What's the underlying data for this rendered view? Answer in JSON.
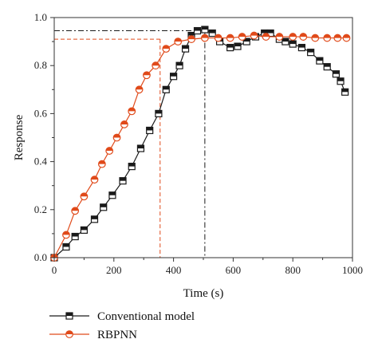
{
  "chart_data": {
    "type": "line",
    "xlabel": "Time (s)",
    "ylabel": "Response",
    "xlim": [
      0,
      1000
    ],
    "ylim": [
      0,
      1.0
    ],
    "x_ticks": [
      0,
      200,
      400,
      600,
      800,
      1000
    ],
    "x_tick_labels": [
      "0",
      "200",
      "400",
      "600",
      "800",
      "1000"
    ],
    "y_ticks": [
      0,
      0.2,
      0.4,
      0.6,
      0.8,
      1.0
    ],
    "y_tick_labels": [
      "0.0",
      "0.2",
      "0.4",
      "0.6",
      "0.8",
      "1.0"
    ],
    "grid": false,
    "legend_position": "bottom-left",
    "series": [
      {
        "name": "Conventional model",
        "color": "#1a1a1a",
        "marker": "square-half-filled",
        "x": [
          0,
          40,
          70,
          100,
          135,
          165,
          195,
          230,
          260,
          290,
          320,
          350,
          375,
          400,
          420,
          440,
          460,
          480,
          505,
          530,
          555,
          590,
          615,
          645,
          675,
          705,
          725,
          755,
          775,
          800,
          830,
          860,
          890,
          915,
          945,
          960,
          975
        ],
        "y": [
          0.0,
          0.045,
          0.088,
          0.115,
          0.16,
          0.21,
          0.26,
          0.32,
          0.38,
          0.455,
          0.53,
          0.6,
          0.7,
          0.755,
          0.8,
          0.87,
          0.925,
          0.945,
          0.95,
          0.935,
          0.9,
          0.875,
          0.88,
          0.9,
          0.92,
          0.935,
          0.935,
          0.91,
          0.9,
          0.89,
          0.875,
          0.855,
          0.82,
          0.795,
          0.765,
          0.735,
          0.69
        ]
      },
      {
        "name": "RBPNN",
        "color": "#e04a1a",
        "marker": "circle-half-filled",
        "x": [
          0,
          40,
          70,
          100,
          135,
          160,
          185,
          210,
          235,
          260,
          285,
          310,
          340,
          375,
          415,
          460,
          505,
          550,
          590,
          630,
          670,
          710,
          755,
          800,
          835,
          875,
          915,
          950,
          980
        ],
        "y": [
          0.0,
          0.095,
          0.195,
          0.255,
          0.325,
          0.39,
          0.445,
          0.5,
          0.555,
          0.61,
          0.7,
          0.76,
          0.8,
          0.87,
          0.9,
          0.91,
          0.915,
          0.915,
          0.915,
          0.92,
          0.925,
          0.92,
          0.92,
          0.92,
          0.92,
          0.915,
          0.915,
          0.915,
          0.915
        ]
      }
    ],
    "reference_lines": [
      {
        "color": "#1a1a1a",
        "style": "dash-dot",
        "x": 505,
        "y": 0.945
      },
      {
        "color": "#e04a1a",
        "style": "dashed",
        "x": 355,
        "y": 0.91
      }
    ]
  }
}
